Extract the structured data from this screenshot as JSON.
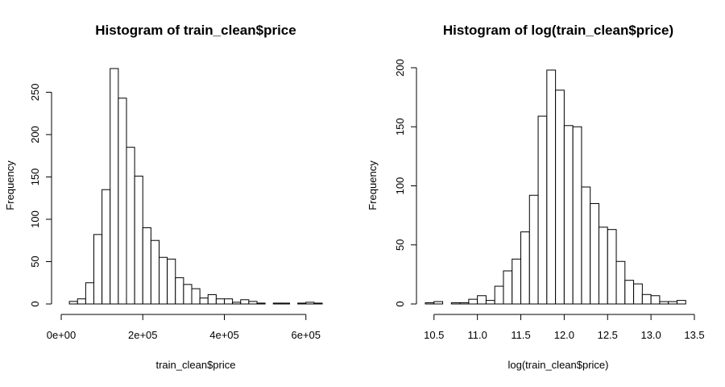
{
  "chart_data": [
    {
      "type": "bar",
      "title": "Histogram of train_clean$price",
      "xlabel": "train_clean$price",
      "ylabel": "Frequency",
      "bin_width": 20000,
      "bin_start": 20000,
      "values": [
        3,
        6,
        25,
        82,
        135,
        278,
        243,
        185,
        151,
        90,
        75,
        55,
        53,
        31,
        23,
        18,
        7,
        11,
        6,
        6,
        2,
        5,
        3,
        1,
        0,
        1,
        1,
        0,
        1,
        2,
        1
      ],
      "xlim": [
        0,
        640000
      ],
      "ylim": [
        0,
        278
      ],
      "xticks": [
        0,
        200000,
        400000,
        600000
      ],
      "xtick_labels": [
        "0e+00",
        "2e+05",
        "4e+05",
        "6e+05"
      ],
      "yticks": [
        0,
        50,
        100,
        150,
        200,
        250
      ],
      "ytick_labels": [
        "0",
        "50",
        "100",
        "150",
        "200",
        "250"
      ]
    },
    {
      "type": "bar",
      "title": "Histogram of log(train_clean$price)",
      "xlabel": "log(train_clean$price)",
      "ylabel": "Frequency",
      "bin_width": 0.1,
      "bin_start": 10.4,
      "values": [
        1,
        2,
        0,
        1,
        1,
        4,
        7,
        3,
        15,
        28,
        38,
        61,
        92,
        159,
        198,
        181,
        151,
        150,
        99,
        85,
        65,
        63,
        36,
        20,
        17,
        8,
        7,
        2,
        2,
        3
      ],
      "xlim": [
        10.4,
        13.5
      ],
      "ylim": [
        0,
        200
      ],
      "xticks": [
        10.5,
        11.0,
        11.5,
        12.0,
        12.5,
        13.0,
        13.5
      ],
      "xtick_labels": [
        "10.5",
        "11.0",
        "11.5",
        "12.0",
        "12.5",
        "13.0",
        "13.5"
      ],
      "yticks": [
        0,
        50,
        100,
        150,
        200
      ],
      "ytick_labels": [
        "0",
        "50",
        "100",
        "150",
        "200"
      ]
    }
  ]
}
